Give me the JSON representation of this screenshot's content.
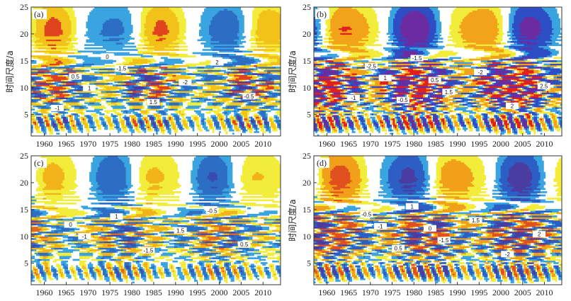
{
  "chart_data": [
    {
      "type": "heatmap",
      "panel_label": "(a)",
      "ylabel": "时间尺度/a",
      "xlim": [
        1957,
        2014
      ],
      "ylim": [
        1,
        25
      ],
      "x_ticks": [
        "1960",
        "1965",
        "1970",
        "1975",
        "1980",
        "1985",
        "1990",
        "1995",
        "2000",
        "2005",
        "2010"
      ],
      "y_ticks": [
        "5",
        "10",
        "15",
        "20",
        "25"
      ],
      "contour_labels": [
        "-1",
        "1",
        "-1.5",
        "1.5",
        "-2",
        "2",
        "-0.5",
        "0.5",
        "0"
      ],
      "colors": {
        "strong_pos": "#e0431f",
        "pos": "#f2c21a",
        "weak_pos": "#f2ec3a",
        "weak_neg": "#3aa4e0",
        "neg": "#2d6ec4",
        "strong_neg": "#4a3ca0"
      }
    },
    {
      "type": "heatmap",
      "panel_label": "(b)",
      "ylabel": "时间尺度/a",
      "xlim": [
        1957,
        2014
      ],
      "ylim": [
        1,
        25
      ],
      "x_ticks": [
        "1960",
        "1965",
        "1970",
        "1975",
        "1980",
        "1985",
        "1990",
        "1995",
        "2000",
        "2005",
        "2010"
      ],
      "y_ticks": [
        "5",
        "10",
        "15",
        "20",
        "25"
      ],
      "contour_labels": [
        "-1",
        "1",
        "-1.5",
        "1.5",
        "-2",
        "2",
        "2.5",
        "-2.5",
        "-0.5",
        "0.5"
      ],
      "colors": {
        "strong_pos": "#e0201f",
        "pos": "#f2a31a",
        "weak_pos": "#f2ec3a",
        "weak_neg": "#3aa4e0",
        "neg": "#2d4ec4",
        "strong_neg": "#6a2ca0"
      }
    },
    {
      "type": "heatmap",
      "panel_label": "(c)",
      "ylabel": "",
      "xlim": [
        1957,
        2014
      ],
      "ylim": [
        1,
        25
      ],
      "x_ticks": [
        "1960",
        "1965",
        "1970",
        "1975",
        "1980",
        "1985",
        "1990",
        "1995",
        "2000",
        "2005",
        "2010"
      ],
      "y_ticks": [
        "5",
        "10",
        "15",
        "20",
        "25"
      ],
      "contour_labels": [
        "-1",
        "1",
        "-1.5",
        "1.5",
        "-0.5",
        "0.5",
        "0"
      ],
      "colors": {
        "strong_pos": "#e06a1f",
        "pos": "#f2b21a",
        "weak_pos": "#f2ec3a",
        "weak_neg": "#3aa4e0",
        "neg": "#2d6ec4",
        "strong_neg": "#3a4cb0"
      }
    },
    {
      "type": "heatmap",
      "panel_label": "(d)",
      "ylabel": "时间尺度/a",
      "xlim": [
        1957,
        2014
      ],
      "ylim": [
        1,
        25
      ],
      "x_ticks": [
        "1960",
        "1965",
        "1970",
        "1975",
        "1980",
        "1985",
        "1990",
        "1995",
        "2000",
        "2005",
        "2010"
      ],
      "y_ticks": [
        "5",
        "10",
        "15",
        "20",
        "25"
      ],
      "contour_labels": [
        "-1",
        "1",
        "-1.5",
        "1.5",
        "-2",
        "2",
        "-0.5",
        "0.5",
        "0"
      ],
      "colors": {
        "strong_pos": "#e0501f",
        "pos": "#f2a01a",
        "weak_pos": "#f2ec3a",
        "weak_neg": "#3aa4e0",
        "neg": "#2d5ec4",
        "strong_neg": "#4a3ca0"
      }
    }
  ]
}
